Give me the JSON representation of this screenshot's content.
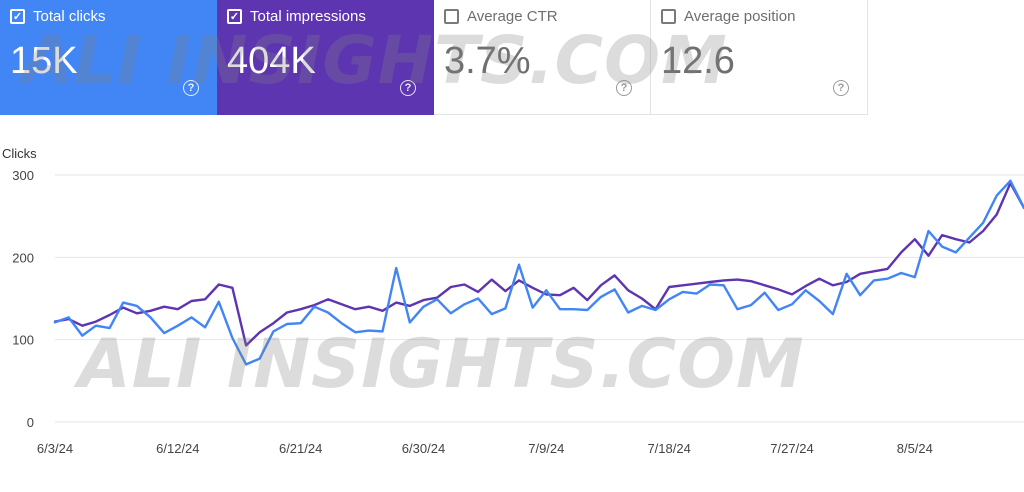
{
  "cards": [
    {
      "label": "Total clicks",
      "value": "15K",
      "checked": true,
      "color": "#4285f4"
    },
    {
      "label": "Total impressions",
      "value": "404K",
      "checked": true,
      "color": "#5e35b1"
    },
    {
      "label": "Average CTR",
      "value": "3.7%",
      "checked": false
    },
    {
      "label": "Average position",
      "value": "12.6",
      "checked": false
    }
  ],
  "help_glyph": "?",
  "check_glyph": "✓",
  "watermark": "ALI INSIGHTS.COM",
  "chart_data": {
    "type": "line",
    "ylabel": "Clicks",
    "yticks": [
      0,
      100,
      200,
      300
    ],
    "ylim": [
      0,
      300
    ],
    "xticks": [
      "6/3/24",
      "6/12/24",
      "6/21/24",
      "6/30/24",
      "7/9/24",
      "7/18/24",
      "7/27/24",
      "8/5/24"
    ],
    "x_start": "6/3/24",
    "grid": true,
    "series": [
      {
        "color": "#5e35b1",
        "values": [
          122,
          125,
          117,
          122,
          130,
          139,
          132,
          135,
          140,
          137,
          147,
          149,
          167,
          163,
          93,
          109,
          120,
          133,
          137,
          142,
          149,
          143,
          137,
          140,
          135,
          145,
          141,
          148,
          151,
          164,
          167,
          158,
          173,
          159,
          172,
          163,
          155,
          154,
          163,
          148,
          166,
          178,
          160,
          150,
          137,
          164,
          166,
          168,
          170,
          172,
          173,
          171,
          166,
          161,
          155,
          165,
          174,
          166,
          170,
          180,
          183,
          186,
          206,
          222,
          202,
          227,
          222,
          218,
          232,
          252,
          290,
          260
        ]
      },
      {
        "color": "#4285f4",
        "values": [
          121,
          127,
          105,
          117,
          114,
          145,
          141,
          127,
          108,
          117,
          127,
          115,
          146,
          102,
          70,
          77,
          110,
          119,
          120,
          140,
          133,
          120,
          109,
          111,
          110,
          187,
          121,
          140,
          149,
          132,
          143,
          150,
          131,
          138,
          191,
          139,
          160,
          137,
          137,
          136,
          152,
          161,
          133,
          141,
          136,
          149,
          158,
          156,
          167,
          166,
          137,
          142,
          157,
          136,
          143,
          160,
          147,
          131,
          180,
          154,
          172,
          174,
          181,
          176,
          232,
          213,
          206,
          224,
          242,
          275,
          293,
          260
        ]
      }
    ]
  }
}
